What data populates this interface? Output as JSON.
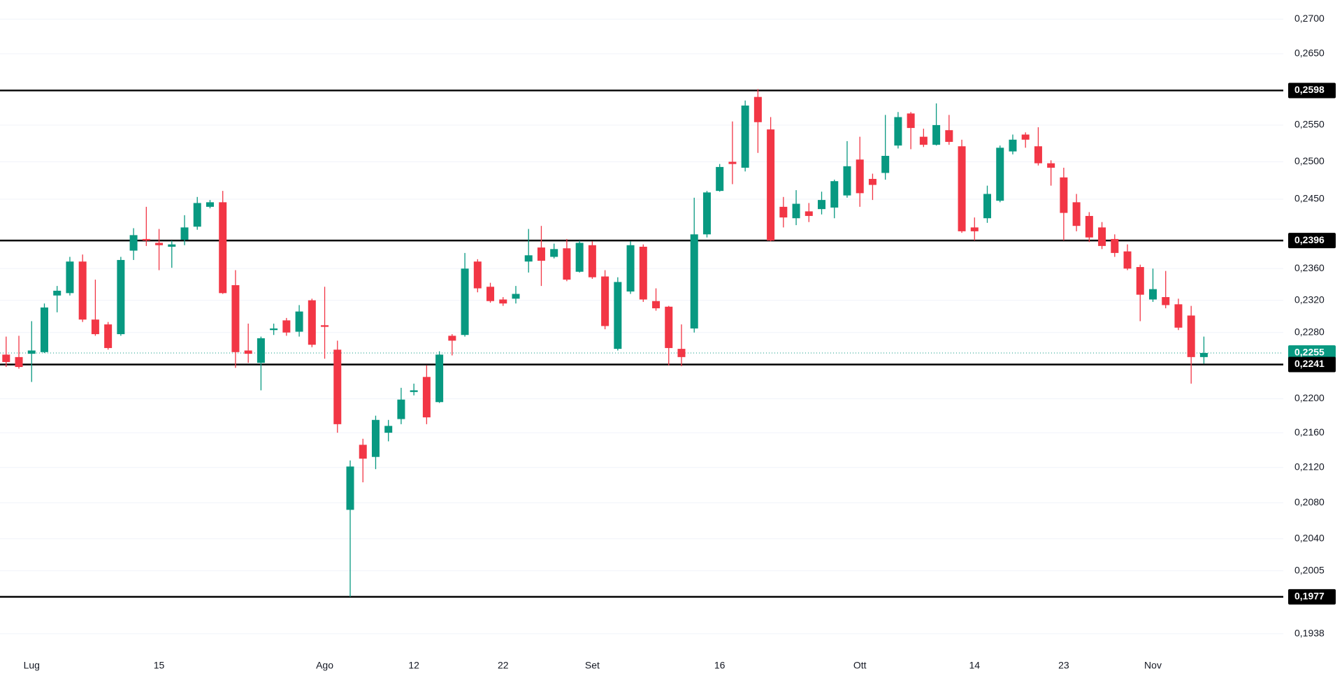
{
  "chart_data": {
    "type": "candlestick",
    "log_scale": true,
    "grid": true,
    "up_color": "#089981",
    "down_color": "#f23645",
    "ylim": [
      0.1916,
      0.2728
    ],
    "yticks": [
      {
        "value": 0.27,
        "label": "0,2700"
      },
      {
        "value": 0.265,
        "label": "0,2650"
      },
      {
        "value": 0.255,
        "label": "0,2550"
      },
      {
        "value": 0.25,
        "label": "0,2500"
      },
      {
        "value": 0.245,
        "label": "0,2450"
      },
      {
        "value": 0.236,
        "label": "0,2360"
      },
      {
        "value": 0.232,
        "label": "0,2320"
      },
      {
        "value": 0.228,
        "label": "0,2280"
      },
      {
        "value": 0.22,
        "label": "0,2200"
      },
      {
        "value": 0.216,
        "label": "0,2160"
      },
      {
        "value": 0.212,
        "label": "0,2120"
      },
      {
        "value": 0.208,
        "label": "0,2080"
      },
      {
        "value": 0.204,
        "label": "0,2040"
      },
      {
        "value": 0.2005,
        "label": "0,2005"
      },
      {
        "value": 0.1938,
        "label": "0,1938"
      }
    ],
    "levels": [
      {
        "value": 0.2598,
        "label": "0,2598"
      },
      {
        "value": 0.2396,
        "label": "0,2396"
      },
      {
        "value": 0.2241,
        "label": "0,2241"
      },
      {
        "value": 0.1977,
        "label": "0,1977"
      }
    ],
    "levels_color": "#000000",
    "last_price": {
      "value": 0.2255,
      "label": "0,2255"
    },
    "categories": [
      null,
      null,
      "Lug",
      null,
      null,
      null,
      null,
      null,
      null,
      null,
      null,
      null,
      "15",
      null,
      null,
      null,
      null,
      null,
      null,
      null,
      null,
      null,
      null,
      null,
      null,
      "Ago",
      null,
      null,
      null,
      null,
      null,
      null,
      "12",
      null,
      null,
      null,
      null,
      null,
      null,
      "22",
      null,
      null,
      null,
      null,
      null,
      null,
      "Set",
      null,
      null,
      null,
      null,
      null,
      null,
      null,
      null,
      null,
      "16",
      null,
      null,
      null,
      null,
      null,
      null,
      null,
      null,
      null,
      null,
      "Ott",
      null,
      null,
      null,
      null,
      null,
      null,
      null,
      null,
      "14",
      null,
      null,
      null,
      null,
      null,
      null,
      "23",
      null,
      null,
      null,
      null,
      null,
      null,
      "Nov",
      null,
      null,
      null,
      null
    ],
    "open": [
      0.2253,
      0.225,
      0.2254,
      0.2256,
      0.2326,
      0.2329,
      0.2369,
      0.2296,
      0.229,
      0.2278,
      0.2383,
      0.2398,
      0.2393,
      0.2388,
      0.2397,
      0.2414,
      0.244,
      0.2446,
      0.2339,
      0.2258,
      0.2243,
      0.2283,
      0.2295,
      0.2281,
      0.232,
      0.2289,
      0.2259,
      0.2072,
      0.2146,
      0.2132,
      0.216,
      0.2176,
      0.2208,
      0.2226,
      0.2196,
      0.2276,
      0.2277,
      0.2369,
      0.2337,
      0.2321,
      0.2322,
      0.2369,
      0.2387,
      0.2375,
      0.2386,
      0.2356,
      0.239,
      0.235,
      0.226,
      0.2331,
      0.2388,
      0.2319,
      0.2312,
      0.226,
      0.2285,
      0.2404,
      0.2461,
      0.25,
      0.2492,
      0.2589,
      0.2544,
      0.244,
      0.2425,
      0.2434,
      0.2437,
      0.2439,
      0.2455,
      0.2503,
      0.2477,
      0.2485,
      0.2522,
      0.2566,
      0.2534,
      0.2523,
      0.2543,
      0.2521,
      0.2413,
      0.2425,
      0.2448,
      0.2514,
      0.2537,
      0.2521,
      0.2498,
      0.2479,
      0.2446,
      0.2428,
      0.2413,
      0.2398,
      0.2382,
      0.2362,
      0.2321,
      0.2324,
      0.2315,
      0.2301,
      0.225
    ],
    "high": [
      0.2275,
      0.2276,
      0.2294,
      0.2316,
      0.2338,
      0.2375,
      0.2378,
      0.2346,
      0.2293,
      0.2375,
      0.2412,
      0.244,
      0.2411,
      0.2396,
      0.2429,
      0.2453,
      0.2449,
      0.2461,
      0.2358,
      0.2291,
      0.2275,
      0.2291,
      0.2298,
      0.2314,
      0.2322,
      0.2337,
      0.227,
      0.2128,
      0.2153,
      0.218,
      0.2175,
      0.2213,
      0.2218,
      0.224,
      0.2257,
      0.2278,
      0.238,
      0.2372,
      0.2342,
      0.2324,
      0.2338,
      0.2411,
      0.2415,
      0.2392,
      0.2398,
      0.2396,
      0.2395,
      0.2358,
      0.2349,
      0.2395,
      0.2391,
      0.2335,
      0.2313,
      0.229,
      0.2452,
      0.2461,
      0.2497,
      0.2555,
      0.2584,
      0.26,
      0.2561,
      0.2453,
      0.2462,
      0.2445,
      0.246,
      0.2476,
      0.2528,
      0.2534,
      0.2484,
      0.2564,
      0.2568,
      0.2568,
      0.2545,
      0.258,
      0.2564,
      0.253,
      0.2426,
      0.2468,
      0.2522,
      0.2537,
      0.254,
      0.2547,
      0.2502,
      0.2492,
      0.2457,
      0.2433,
      0.242,
      0.2404,
      0.2391,
      0.2365,
      0.236,
      0.2357,
      0.2322,
      0.2313,
      0.2275
    ],
    "low": [
      0.2238,
      0.2236,
      0.222,
      0.2255,
      0.2305,
      0.2326,
      0.2293,
      0.2276,
      0.2259,
      0.2276,
      0.2371,
      0.2389,
      0.2358,
      0.2361,
      0.239,
      0.241,
      0.2438,
      0.2328,
      0.2237,
      0.2243,
      0.221,
      0.2277,
      0.2276,
      0.2275,
      0.2262,
      0.2248,
      0.216,
      0.1977,
      0.2103,
      0.2118,
      0.215,
      0.217,
      0.2204,
      0.217,
      0.2195,
      0.2252,
      0.2275,
      0.233,
      0.2317,
      0.2313,
      0.2316,
      0.2355,
      0.2338,
      0.2373,
      0.2344,
      0.2355,
      0.2347,
      0.2284,
      0.2258,
      0.2328,
      0.2318,
      0.2307,
      0.224,
      0.2239,
      0.228,
      0.24,
      0.246,
      0.247,
      0.2487,
      0.2512,
      0.2395,
      0.2413,
      0.2416,
      0.242,
      0.243,
      0.2425,
      0.2452,
      0.244,
      0.2449,
      0.2476,
      0.2518,
      0.2517,
      0.252,
      0.2522,
      0.2523,
      0.2406,
      0.2396,
      0.2419,
      0.2446,
      0.251,
      0.2519,
      0.2495,
      0.2468,
      0.2396,
      0.2408,
      0.2394,
      0.2385,
      0.2375,
      0.2358,
      0.2294,
      0.2318,
      0.231,
      0.2283,
      0.2218,
      0.2242
    ],
    "close": [
      0.2244,
      0.2238,
      0.2258,
      0.2311,
      0.2332,
      0.2369,
      0.2296,
      0.2278,
      0.2261,
      0.2371,
      0.2403,
      0.2396,
      0.239,
      0.2391,
      0.2413,
      0.2445,
      0.2446,
      0.2329,
      0.2256,
      0.2254,
      0.2273,
      0.2285,
      0.228,
      0.2306,
      0.2265,
      0.2287,
      0.217,
      0.2121,
      0.213,
      0.2175,
      0.2168,
      0.2199,
      0.221,
      0.2178,
      0.2253,
      0.227,
      0.236,
      0.2335,
      0.2319,
      0.2316,
      0.2328,
      0.2377,
      0.237,
      0.2385,
      0.2346,
      0.2393,
      0.2349,
      0.2288,
      0.2343,
      0.239,
      0.2321,
      0.231,
      0.2261,
      0.225,
      0.2404,
      0.2459,
      0.2493,
      0.2497,
      0.2577,
      0.2554,
      0.2396,
      0.2426,
      0.2444,
      0.2428,
      0.2449,
      0.2474,
      0.2494,
      0.2458,
      0.2469,
      0.2508,
      0.2561,
      0.2546,
      0.2523,
      0.255,
      0.2527,
      0.2408,
      0.2408,
      0.2457,
      0.2519,
      0.253,
      0.253,
      0.2498,
      0.2492,
      0.2432,
      0.2415,
      0.24,
      0.2389,
      0.238,
      0.236,
      0.2327,
      0.2334,
      0.2314,
      0.2286,
      0.225,
      0.2255
    ]
  }
}
